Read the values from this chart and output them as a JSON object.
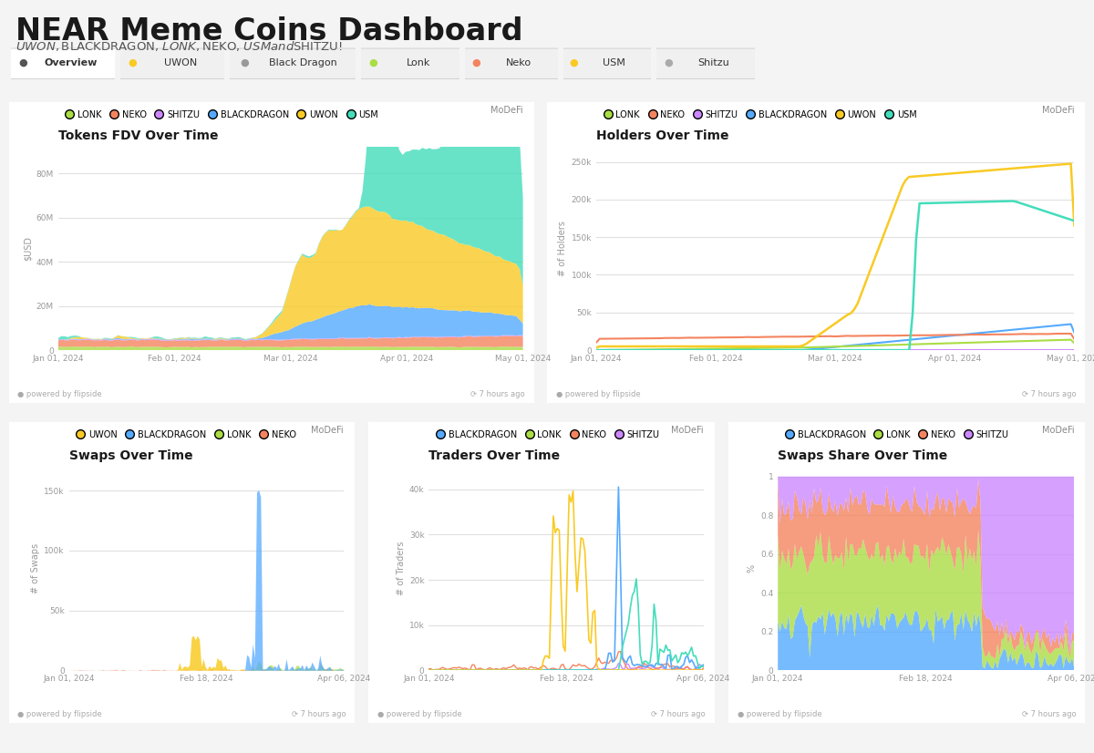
{
  "title": "NEAR Meme Coins Dashboard",
  "subtitle": "$UWON, $BLACKDRAGON, $LONK, $NEKO, $USM and $SHITZU!",
  "tabs": [
    "Overview",
    "UWON",
    "Black Dragon",
    "Lonk",
    "Neko",
    "USM",
    "Shitzu"
  ],
  "colors": {
    "LONK": "#aadd44",
    "NEKO": "#f4845f",
    "SHITZU": "#cc88ff",
    "BLACKDRAGON": "#55aaff",
    "UWON": "#f9ca24",
    "USM": "#44ddbb"
  },
  "panel_bg": "#ffffff",
  "bg_color": "#f4f4f4",
  "footer_text": "powered by flipside",
  "footer_time": "7 hours ago",
  "chart1_title": "Tokens FDV Over Time",
  "chart1_ylabel": "$USD",
  "chart1_yticks": [
    0,
    20000000,
    40000000,
    60000000,
    80000000
  ],
  "chart1_ytick_labels": [
    "0",
    "20M",
    "40M",
    "60M",
    "80M"
  ],
  "chart1_legend": [
    "LONK",
    "NEKO",
    "SHITZU",
    "BLACKDRAGON",
    "UWON",
    "USM"
  ],
  "chart2_title": "Holders Over Time",
  "chart2_ylabel": "# of Holders",
  "chart2_yticks": [
    0,
    50000,
    100000,
    150000,
    200000,
    250000
  ],
  "chart2_ytick_labels": [
    "0",
    "50k",
    "100k",
    "150k",
    "200k",
    "250k"
  ],
  "chart2_legend": [
    "LONK",
    "NEKO",
    "SHITZU",
    "BLACKDRAGON",
    "UWON",
    "USM"
  ],
  "chart3_title": "Swaps Over Time",
  "chart3_ylabel": "# of Swaps",
  "chart3_yticks": [
    0,
    50000,
    100000,
    150000
  ],
  "chart3_ytick_labels": [
    "0",
    "50k",
    "100k",
    "150k"
  ],
  "chart3_legend": [
    "UWON",
    "BLACKDRAGON",
    "LONK",
    "NEKO"
  ],
  "chart4_title": "Traders Over Time",
  "chart4_ylabel": "# of Traders",
  "chart4_yticks": [
    0,
    10000,
    20000,
    30000,
    40000
  ],
  "chart4_ytick_labels": [
    "0",
    "10k",
    "20k",
    "30k",
    "40k"
  ],
  "chart4_legend": [
    "BLACKDRAGON",
    "LONK",
    "NEKO",
    "SHITZU"
  ],
  "chart5_title": "Swaps Share Over Time",
  "chart5_ylabel": "%",
  "chart5_yticks": [
    0,
    0.2,
    0.4,
    0.6,
    0.8,
    1.0
  ],
  "chart5_ytick_labels": [
    "0",
    "0.2",
    "0.4",
    "0.6",
    "0.8",
    "1"
  ],
  "chart5_legend": [
    "BLACKDRAGON",
    "LONK",
    "NEKO",
    "SHITZU"
  ],
  "xdates_main": [
    "Jan 01, 2024",
    "Feb 01, 2024",
    "Mar 01, 2024",
    "Apr 01, 2024",
    "May 01, 2024"
  ],
  "xdates_bot": [
    "Jan 01, 2024",
    "Feb 18, 2024",
    "Apr 06, 2024"
  ]
}
